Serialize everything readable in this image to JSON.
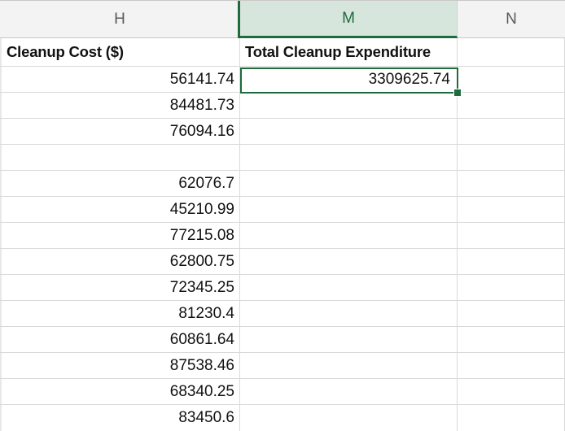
{
  "columns": [
    "H",
    "M",
    "N"
  ],
  "selected_column": "M",
  "headers": {
    "h": "Cleanup Cost ($)",
    "m": "Total Cleanup Expenditure"
  },
  "total": "3309625.74",
  "cleanup_costs": [
    "56141.74",
    "84481.73",
    "76094.16",
    "",
    "62076.7",
    "45210.99",
    "77215.08",
    "62800.75",
    "72345.25",
    "81230.4",
    "60861.64",
    "87538.46",
    "68340.25",
    "83450.6"
  ],
  "colors": {
    "accent": "#1e6b3d",
    "header_bg": "#f3f3f3",
    "selected_header_bg": "#d6e6dc"
  }
}
